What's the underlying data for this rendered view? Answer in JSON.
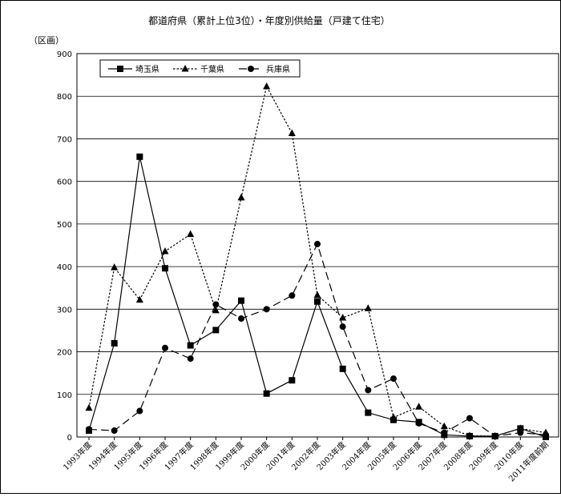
{
  "chart_data": {
    "type": "line",
    "title": "都道府県（累計上位3位）・年度別供給量（戸建て住宅）",
    "unit_label": "（区画）",
    "xlabel": "",
    "ylabel": "",
    "ylim": [
      0,
      900
    ],
    "yticks": [
      0,
      100,
      200,
      300,
      400,
      500,
      600,
      700,
      800,
      900
    ],
    "grid": true,
    "legend_position": "top-left",
    "categories": [
      "1993年度",
      "1994年度",
      "1995年度",
      "1996年度",
      "1997年度",
      "1998年度",
      "1999年度",
      "2000年度",
      "2001年度",
      "2002年度",
      "2003年度",
      "2004年度",
      "2005年度",
      "2006年度",
      "2007年度",
      "2008年度",
      "2009年度",
      "2010年度",
      "2011年度前期"
    ],
    "series": [
      {
        "name": "埼玉県",
        "marker": "square",
        "line_style": "solid",
        "values": [
          15,
          220,
          658,
          396,
          215,
          251,
          320,
          102,
          133,
          318,
          160,
          57,
          40,
          35,
          5,
          2,
          2,
          20,
          0
        ]
      },
      {
        "name": "千葉県",
        "marker": "triangle",
        "line_style": "dotted",
        "values": [
          68,
          398,
          322,
          436,
          476,
          297,
          562,
          823,
          713,
          333,
          280,
          302,
          46,
          71,
          25,
          3,
          2,
          20,
          10
        ]
      },
      {
        "name": "兵庫県",
        "marker": "circle",
        "line_style": "dashed",
        "values": [
          18,
          15,
          61,
          209,
          184,
          311,
          278,
          300,
          332,
          453,
          259,
          110,
          137,
          32,
          10,
          44,
          2,
          10,
          5
        ]
      }
    ]
  }
}
